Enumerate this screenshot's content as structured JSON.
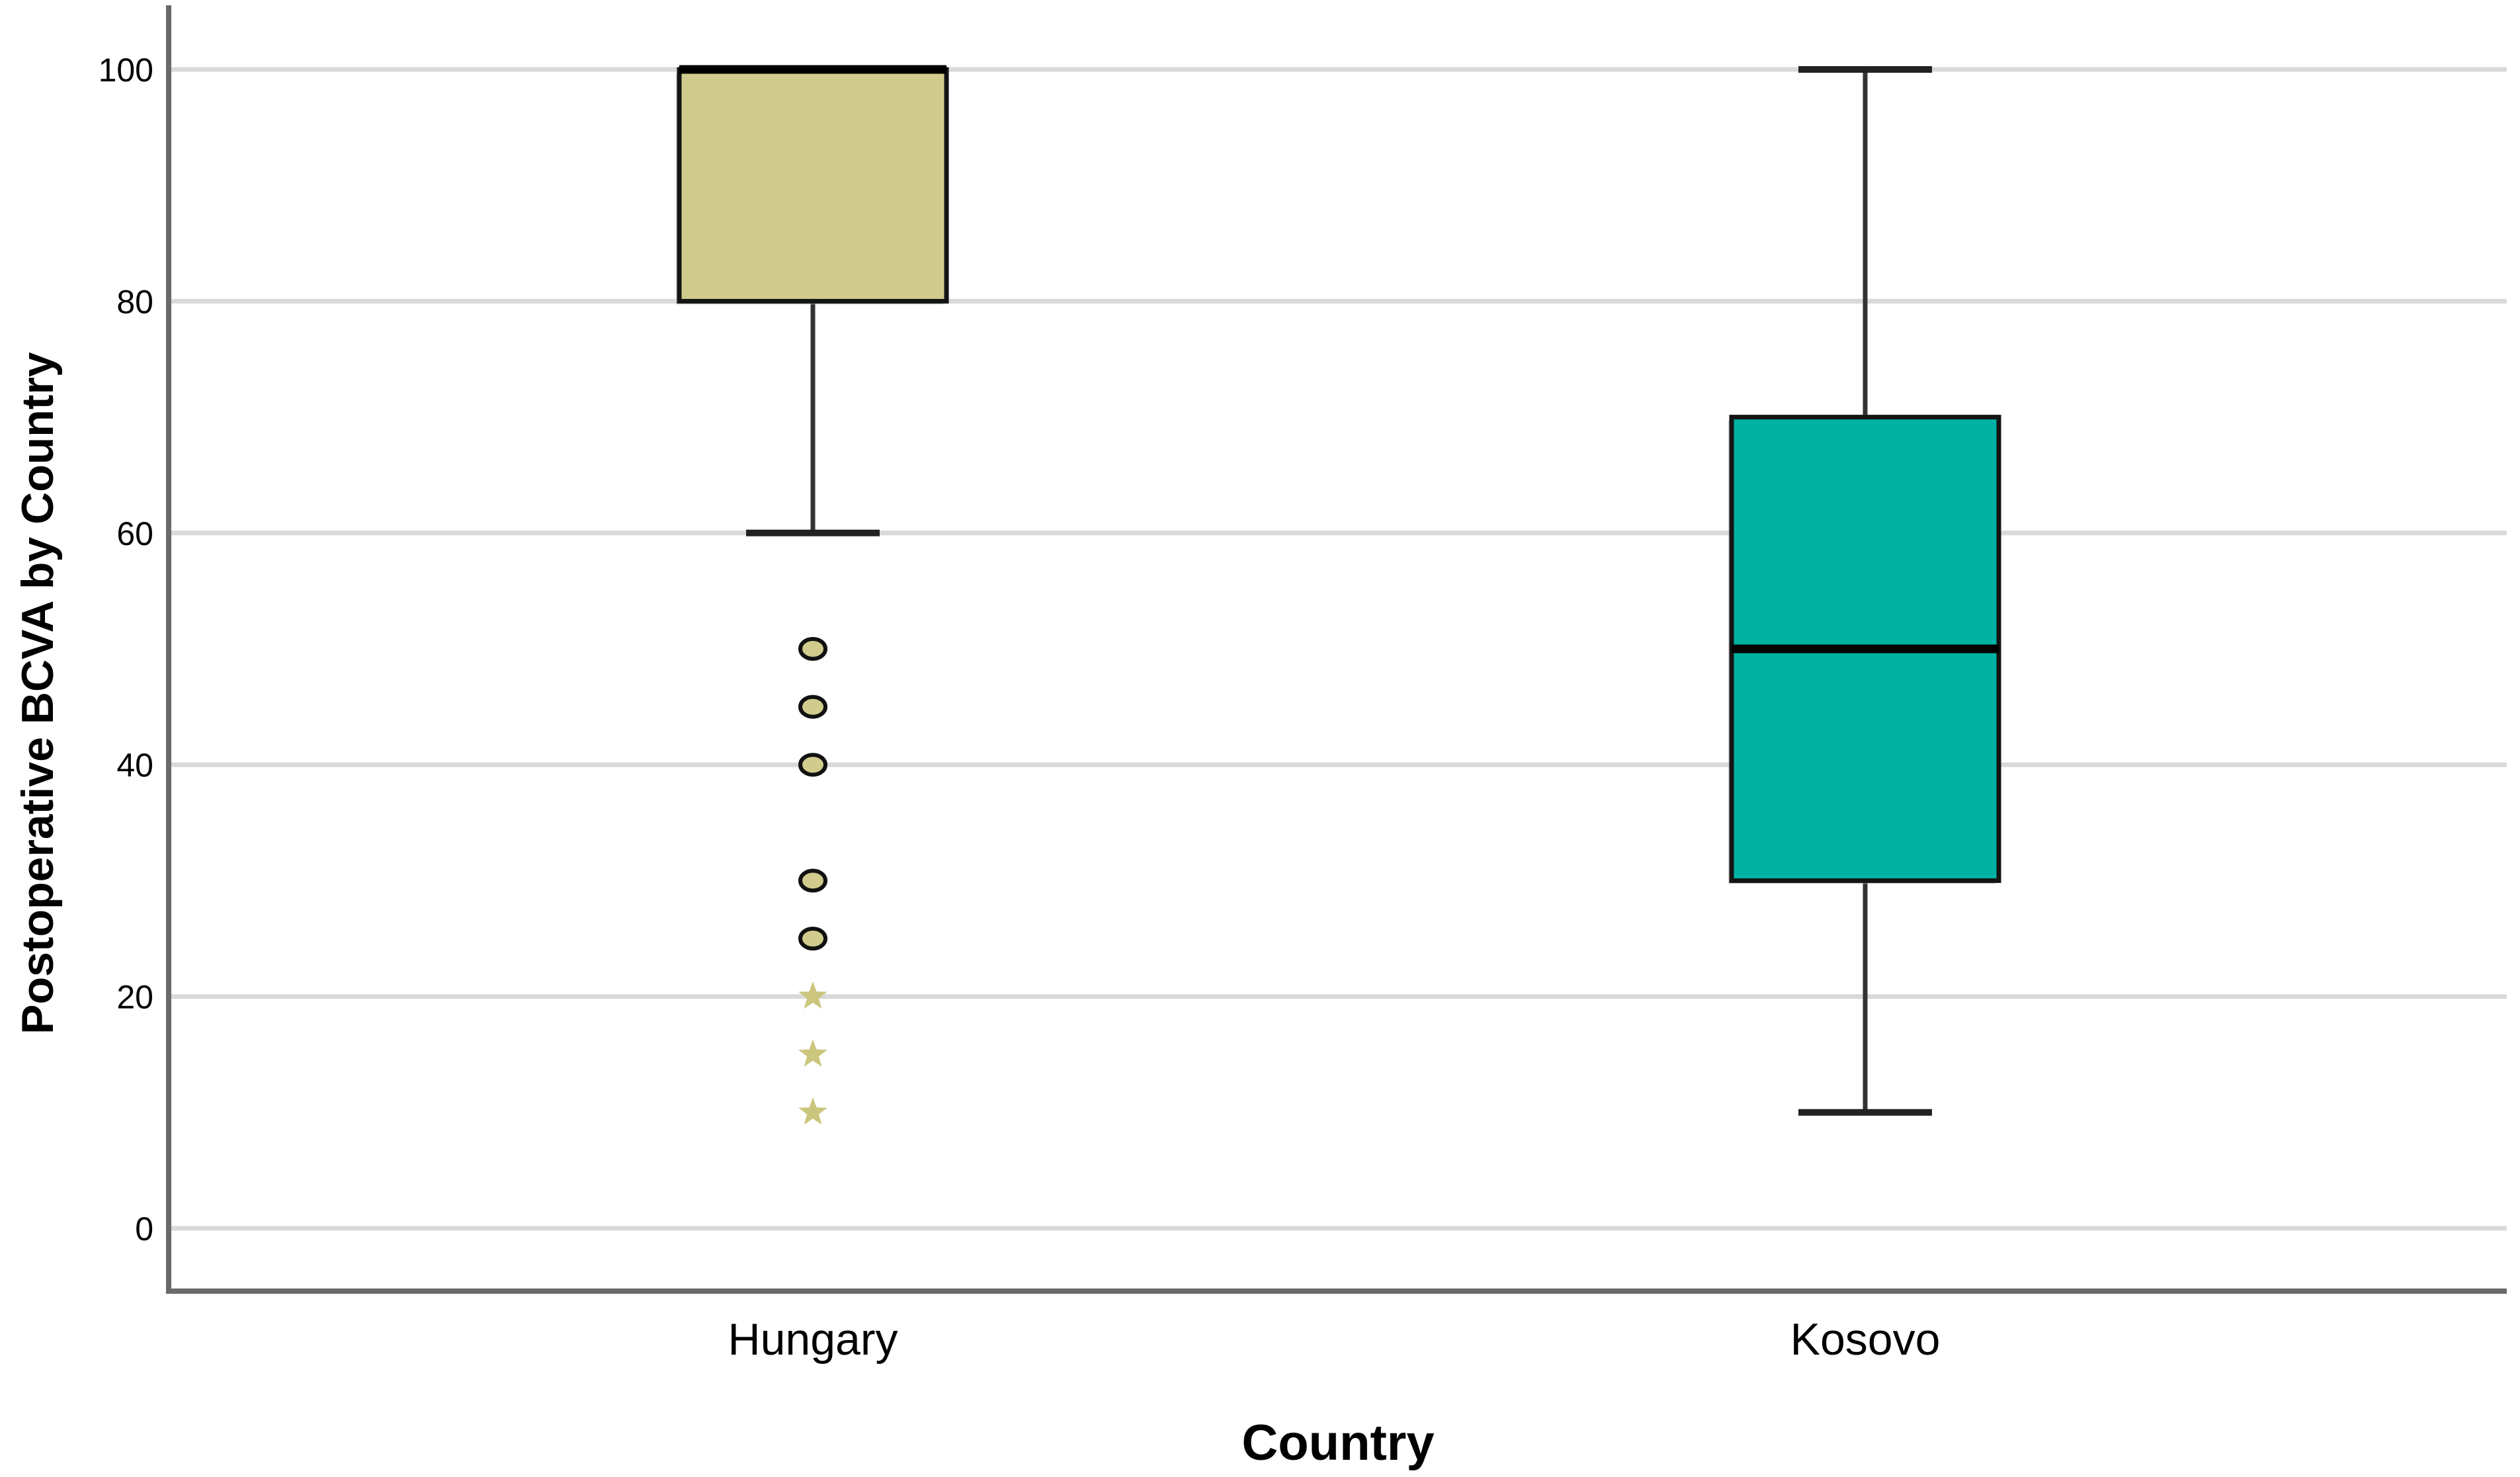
{
  "chart_data": {
    "type": "boxplot",
    "title": "",
    "xlabel": "Country",
    "ylabel": "Postoperative BCVA by Country",
    "categories": [
      "Hungary",
      "Kosovo"
    ],
    "yticks": [
      0,
      20,
      40,
      60,
      80,
      100
    ],
    "ylim": [
      0,
      100
    ],
    "grid": true,
    "legend": false,
    "series": [
      {
        "name": "Hungary",
        "color": "#D1CB8D",
        "whisker_low": 60,
        "q1": 80,
        "median": 100,
        "q3": 100,
        "whisker_high": 100,
        "outliers_mild": [
          50,
          45,
          40,
          30,
          25
        ],
        "outliers_extreme": [
          20,
          15,
          10
        ],
        "mild_marker": "circle",
        "extreme_marker": "star"
      },
      {
        "name": "Kosovo",
        "color": "#00B2A2",
        "whisker_low": 10,
        "q1": 30,
        "median": 50,
        "q3": 70,
        "whisker_high": 100,
        "outliers_mild": [],
        "outliers_extreme": [],
        "mild_marker": "circle",
        "extreme_marker": "star"
      }
    ],
    "colors": {
      "background": "#FFFFFF",
      "gridline": "#D9D9D9",
      "axis_line": "#6A6A6A",
      "box_border": "#141414",
      "median_line": "#000000",
      "whisker_line": "#333333",
      "whisker_cap": "#222222",
      "box_shadow": "#B3B3B3",
      "star_fill": "#CCC57E",
      "text": "#000000"
    }
  }
}
